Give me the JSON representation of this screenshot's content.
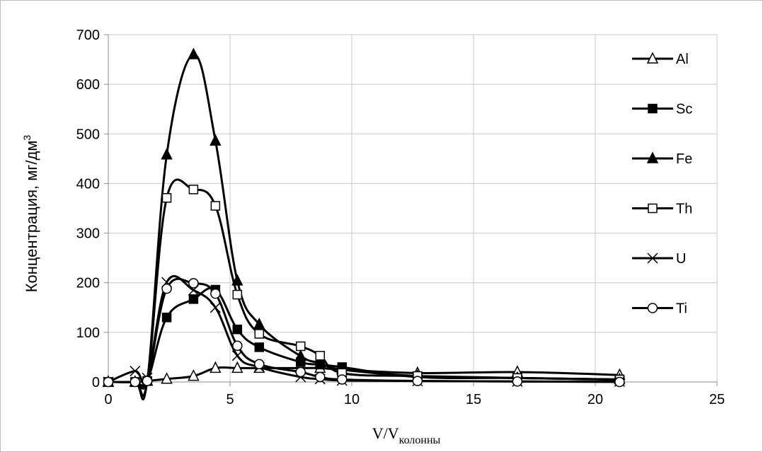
{
  "chart_data": {
    "type": "line",
    "xlabel_main": "V/V",
    "xlabel_sub": "колонны",
    "ylabel_main": "Концентрация, мг/дм",
    "ylabel_sup": "3",
    "xlim": [
      0,
      25
    ],
    "ylim": [
      0,
      700
    ],
    "xticks": [
      0,
      5,
      10,
      15,
      20,
      25
    ],
    "yticks": [
      0,
      100,
      200,
      300,
      400,
      500,
      600,
      700
    ],
    "grid": true,
    "legend_position": "right",
    "series": [
      {
        "name": "Al",
        "marker": "triangle-open",
        "x": [
          0,
          1.1,
          1.6,
          2.4,
          3.5,
          4.4,
          5.3,
          6.2,
          7.9,
          8.7,
          9.6,
          12.7,
          16.8,
          21
        ],
        "y": [
          0,
          0,
          2,
          6,
          12,
          28,
          28,
          28,
          28,
          28,
          25,
          18,
          20,
          14
        ]
      },
      {
        "name": "Sc",
        "marker": "square-filled",
        "x": [
          0,
          1.1,
          1.6,
          2.4,
          3.5,
          4.4,
          5.3,
          6.2,
          7.9,
          8.7,
          9.6,
          12.7,
          16.8,
          21
        ],
        "y": [
          0,
          0,
          2,
          130,
          167,
          186,
          106,
          70,
          40,
          35,
          30,
          10,
          8,
          5
        ]
      },
      {
        "name": "Fe",
        "marker": "triangle-filled",
        "x": [
          0,
          1.1,
          1.6,
          2.4,
          3.5,
          4.4,
          5.3,
          6.2,
          7.9,
          8.7,
          9.6,
          12.7,
          16.8,
          21
        ],
        "y": [
          0,
          0,
          2,
          458,
          660,
          486,
          204,
          116,
          52,
          38,
          25,
          12,
          8,
          5
        ]
      },
      {
        "name": "Th",
        "marker": "square-open",
        "x": [
          0,
          1.1,
          1.6,
          2.4,
          3.5,
          4.4,
          5.3,
          6.2,
          7.9,
          8.7,
          9.6,
          12.7,
          16.8,
          21
        ],
        "y": [
          0,
          0,
          2,
          371,
          388,
          355,
          176,
          97,
          72,
          53,
          18,
          12,
          8,
          5
        ]
      },
      {
        "name": "U",
        "marker": "cross",
        "x": [
          0,
          1.1,
          1.6,
          2.4,
          3.5,
          4.4,
          5.3,
          6.2,
          7.9,
          8.7,
          9.6,
          12.7,
          16.8,
          21
        ],
        "y": [
          0,
          22,
          8,
          201,
          185,
          150,
          53,
          30,
          10,
          6,
          3,
          2,
          1,
          1
        ]
      },
      {
        "name": "Ti",
        "marker": "circle-open",
        "x": [
          0,
          1.1,
          1.6,
          2.4,
          3.5,
          4.4,
          5.3,
          6.2,
          7.9,
          8.7,
          9.6,
          12.7,
          16.8,
          21
        ],
        "y": [
          0,
          0,
          2,
          188,
          199,
          178,
          73,
          36,
          20,
          10,
          5,
          2,
          1,
          0
        ]
      }
    ],
    "colors": {
      "line": "#000000",
      "grid": "#c8c8c8",
      "frame": "#bdbdbd"
    }
  }
}
